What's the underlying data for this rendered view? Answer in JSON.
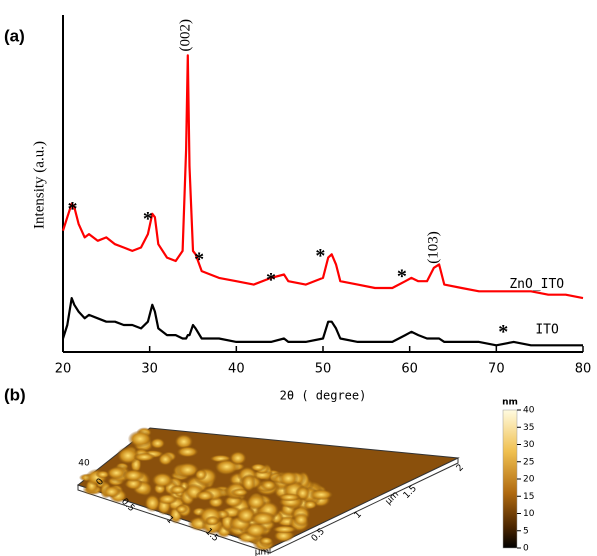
{
  "panel_labels": [
    "(a)",
    "(b)"
  ],
  "chart_data": {
    "type": "line",
    "xlabel": "2θ ( degree)",
    "ylabel": "Intensity (a.u.)",
    "x": [
      20,
      20.5,
      21,
      21.3,
      21.8,
      22.5,
      23,
      24,
      25,
      26,
      27,
      28,
      29,
      29.8,
      30.3,
      30.6,
      31,
      32,
      33,
      33.8,
      34.2,
      34.4,
      34.6,
      35,
      35.3,
      36,
      37,
      38,
      40,
      42,
      44,
      45.5,
      46,
      48,
      50,
      50.6,
      51,
      51.5,
      52,
      54,
      56,
      58,
      59.5,
      60.2,
      61,
      62,
      62.8,
      63.4,
      64,
      66,
      68,
      70,
      72,
      74,
      76,
      78,
      80
    ],
    "series": [
      {
        "name": "ZnO_ITO",
        "color": "#ff0000",
        "values": [
          36,
          40,
          44,
          43,
          38,
          34,
          35,
          33,
          34,
          32,
          31,
          30,
          31,
          35,
          41,
          40,
          32,
          28,
          27,
          30,
          60,
          88,
          55,
          30,
          29,
          24,
          23,
          22,
          21,
          20,
          22,
          23,
          21,
          20,
          22,
          28,
          29,
          26,
          21,
          20,
          19,
          19,
          21,
          22,
          21,
          21,
          25,
          26,
          20,
          19,
          18,
          18,
          18,
          18,
          17,
          17,
          16
        ]
      },
      {
        "name": "ITO",
        "color": "#000000",
        "values": [
          4,
          8,
          16,
          14,
          12,
          10,
          11,
          10,
          9,
          9,
          8,
          8,
          7,
          9,
          14,
          12,
          7,
          5,
          5,
          4,
          4,
          5,
          5,
          8,
          7,
          4,
          4,
          4,
          3,
          3,
          3,
          4,
          3,
          3,
          4,
          9,
          9,
          7,
          4,
          3,
          3,
          3,
          5,
          6,
          5,
          4,
          4,
          4,
          3,
          3,
          3,
          2,
          3,
          2,
          2,
          2,
          2
        ]
      }
    ],
    "series_labels": [
      {
        "text": "ZnO_ITO",
        "x": 71.5,
        "y": 20
      },
      {
        "text": "ITO",
        "x": 74.5,
        "y": 6.5
      }
    ],
    "annotations": [
      {
        "text": "(002)",
        "x": 34.2,
        "y": 94,
        "rotated": true
      },
      {
        "text": "(103)",
        "x": 62.8,
        "y": 31,
        "rotated": true
      },
      {
        "text": "*",
        "x": 21.1,
        "y": 42
      },
      {
        "text": "*",
        "x": 29.8,
        "y": 39
      },
      {
        "text": "*",
        "x": 35.7,
        "y": 27
      },
      {
        "text": "*",
        "x": 44,
        "y": 21
      },
      {
        "text": "*",
        "x": 49.7,
        "y": 28
      },
      {
        "text": "*",
        "x": 59.1,
        "y": 22
      },
      {
        "text": "*",
        "x": 70.8,
        "y": 5.5
      }
    ],
    "xlim": [
      20,
      80
    ],
    "xticks": [
      20,
      30,
      40,
      50,
      60,
      70,
      80
    ],
    "ylim": [
      0,
      100
    ]
  },
  "afm_panel": {
    "unit": "nm",
    "colorbar_ticks": [
      "40",
      "35",
      "30",
      "25",
      "20",
      "15",
      "10",
      "5",
      "0"
    ],
    "z_ticks": [
      "40",
      "0"
    ],
    "left_axis_ticks": [
      "0.5",
      "1",
      "1.5"
    ],
    "right_axis_ticks": [
      "0.5",
      "1",
      "1.5",
      "2"
    ],
    "axis_unit": [
      "µm",
      "µm"
    ]
  }
}
